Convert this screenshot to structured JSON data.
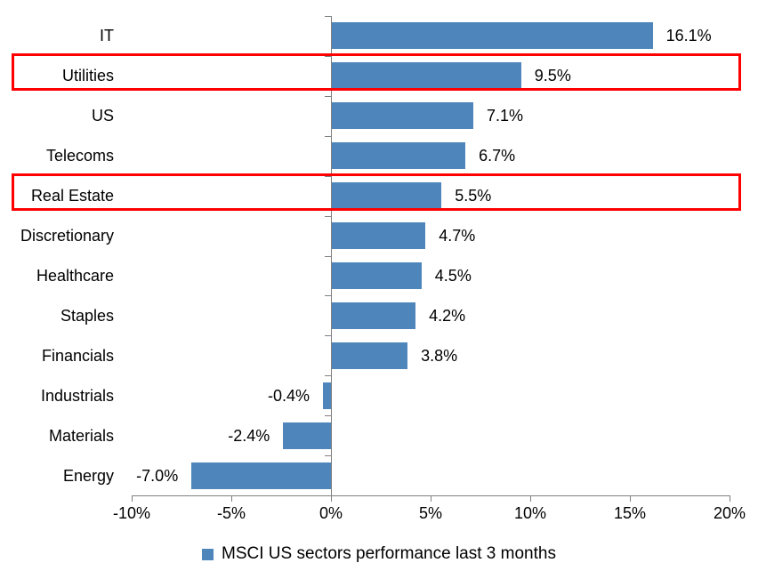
{
  "chart_data": {
    "type": "bar",
    "orientation": "horizontal",
    "title": "",
    "categories": [
      "IT",
      "Utilities",
      "US",
      "Telecoms",
      "Real Estate",
      "Discretionary",
      "Healthcare",
      "Staples",
      "Financials",
      "Industrials",
      "Materials",
      "Energy"
    ],
    "values": [
      16.1,
      9.5,
      7.1,
      6.7,
      5.5,
      4.7,
      4.5,
      4.2,
      3.8,
      -0.4,
      -2.4,
      -7.0
    ],
    "value_labels": [
      "16.1%",
      "9.5%",
      "7.1%",
      "6.7%",
      "5.5%",
      "4.7%",
      "4.5%",
      "4.2%",
      "3.8%",
      "-0.4%",
      "-2.4%",
      "-7.0%"
    ],
    "x_ticks": [
      {
        "value": -10,
        "label": "-10%"
      },
      {
        "value": -5,
        "label": "-5%"
      },
      {
        "value": 0,
        "label": "0%"
      },
      {
        "value": 5,
        "label": "5%"
      },
      {
        "value": 10,
        "label": "10%"
      },
      {
        "value": 15,
        "label": "15%"
      },
      {
        "value": 20,
        "label": "20%"
      }
    ],
    "xlim": [
      -10,
      20
    ],
    "xlabel": "",
    "ylabel": "",
    "grid": false,
    "legend_position": "bottom-center",
    "legend": {
      "label": "MSCI US sectors performance last 3 months",
      "marker": "square-icon"
    },
    "highlighted_categories": [
      "Utilities",
      "Real Estate"
    ],
    "colors": {
      "bar": "#4e86bc",
      "highlight_box": "#ff0000",
      "axis": "#7f7f7f",
      "text": "#000000",
      "background": "#ffffff"
    }
  }
}
